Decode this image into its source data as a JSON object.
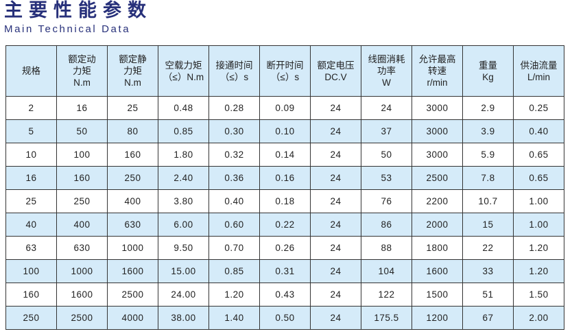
{
  "title": "主要性能参数",
  "subtitle": "Main Technical Data",
  "colors": {
    "title": "#27307a",
    "header_bg": "#d5ebf9",
    "alt_row_bg": "#d5ebf9"
  },
  "headers": [
    [
      "规格"
    ],
    [
      "额定动",
      "力矩",
      "N.m"
    ],
    [
      "额定静",
      "力矩",
      "N.m"
    ],
    [
      "空载力矩",
      "（≤）N.m"
    ],
    [
      "接通时间",
      "（≤）s"
    ],
    [
      "断开时间",
      "（≤）s"
    ],
    [
      "额定电压",
      "DC.V"
    ],
    [
      "线圈消耗",
      "功率",
      "W"
    ],
    [
      "允许最高",
      "转速",
      "r/min"
    ],
    [
      "重量",
      "Kg"
    ],
    [
      "供油流量",
      "L/min"
    ]
  ],
  "rows": [
    [
      "2",
      "16",
      "25",
      "0.48",
      "0.28",
      "0.09",
      "24",
      "24",
      "3000",
      "2.9",
      "0.25"
    ],
    [
      "5",
      "50",
      "80",
      "0.85",
      "0.30",
      "0.10",
      "24",
      "37",
      "3000",
      "3.9",
      "0.40"
    ],
    [
      "10",
      "100",
      "160",
      "1.80",
      "0.32",
      "0.14",
      "24",
      "50",
      "3000",
      "5.9",
      "0.65"
    ],
    [
      "16",
      "160",
      "250",
      "2.40",
      "0.36",
      "0.16",
      "24",
      "53",
      "2500",
      "7.8",
      "0.65"
    ],
    [
      "25",
      "250",
      "400",
      "3.80",
      "0.40",
      "0.18",
      "24",
      "76",
      "2200",
      "10.7",
      "1.00"
    ],
    [
      "40",
      "400",
      "630",
      "6.00",
      "0.60",
      "0.22",
      "24",
      "86",
      "2000",
      "15",
      "1.00"
    ],
    [
      "63",
      "630",
      "1000",
      "9.50",
      "0.70",
      "0.26",
      "24",
      "88",
      "1800",
      "22",
      "1.20"
    ],
    [
      "100",
      "1000",
      "1600",
      "15.00",
      "0.85",
      "0.31",
      "24",
      "104",
      "1600",
      "33",
      "1.20"
    ],
    [
      "160",
      "1600",
      "2500",
      "24.00",
      "1.20",
      "0.43",
      "24",
      "122",
      "1500",
      "51",
      "1.50"
    ],
    [
      "250",
      "2500",
      "4000",
      "38.00",
      "1.40",
      "0.50",
      "24",
      "175.5",
      "1200",
      "67",
      "2.00"
    ]
  ]
}
